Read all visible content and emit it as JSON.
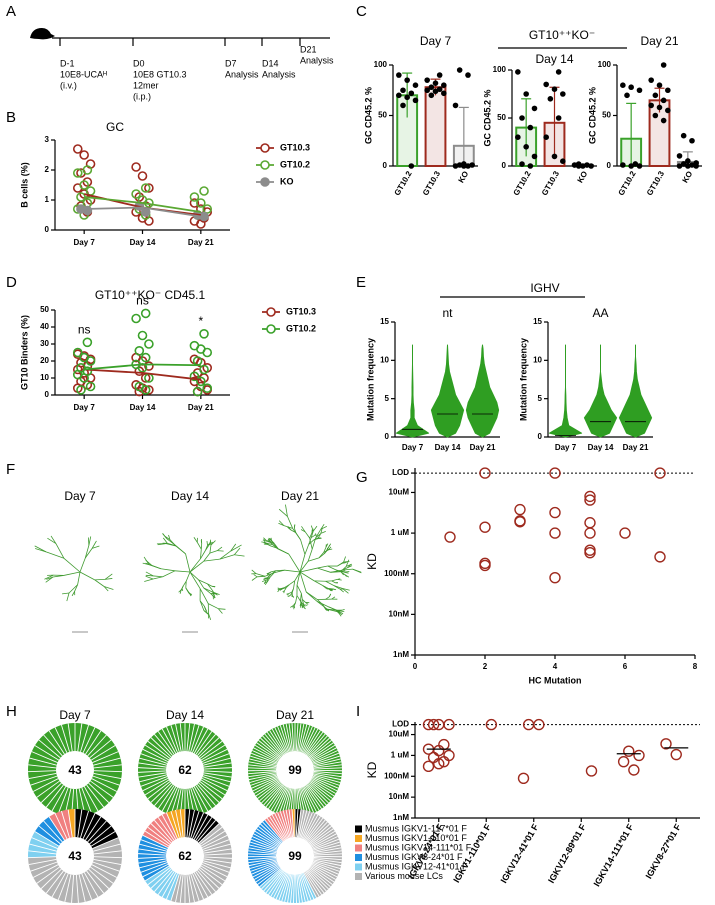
{
  "panels": [
    "A",
    "B",
    "C",
    "D",
    "E",
    "F",
    "G",
    "H",
    "I"
  ],
  "chart_data": [
    {
      "type": "timeline",
      "events": [
        {
          "day": "D-1",
          "lines": [
            "10E8-UCAᴴ",
            "(i.v.)"
          ]
        },
        {
          "day": "D0",
          "lines": [
            "10E8 GT10.3",
            "12mer",
            "(i.p.)"
          ]
        },
        {
          "day": "D7",
          "lines": [
            "Analysis"
          ]
        },
        {
          "day": "D14",
          "lines": [
            "Analysis"
          ]
        },
        {
          "day": "D21",
          "lines": [
            "Analysis"
          ]
        }
      ]
    },
    {
      "type": "line",
      "title": "GC",
      "ylabel": "B cells (%)",
      "categories": [
        "Day 7",
        "Day 14",
        "Day 21"
      ],
      "ylim": [
        0,
        3
      ],
      "yticks": [
        0,
        1,
        2,
        3
      ],
      "legend": "right",
      "series": [
        {
          "name": "GT10.3",
          "color": "#9e2a1e",
          "values": [
            1.2,
            0.75,
            0.5
          ],
          "points": [
            [
              2.7,
              2.5,
              2.2,
              1.9,
              1.6,
              1.4,
              1.2,
              1.0,
              0.8,
              0.6
            ],
            [
              2.1,
              1.8,
              1.4,
              1.1,
              0.8,
              0.6,
              0.4,
              0.3
            ],
            [
              0.9,
              0.7,
              0.6,
              0.5,
              0.4,
              0.3,
              0.2
            ]
          ]
        },
        {
          "name": "GT10.2",
          "color": "#5aa832",
          "values": [
            1.1,
            0.9,
            0.6
          ],
          "points": [
            [
              2.0,
              1.9,
              1.5,
              1.3,
              1.1,
              0.9,
              0.7,
              0.5
            ],
            [
              1.4,
              1.2,
              1.0,
              0.9,
              0.7,
              0.5
            ],
            [
              1.3,
              1.1,
              0.9,
              0.7,
              0.5
            ]
          ]
        },
        {
          "name": "KO",
          "color": "#8c8c8c",
          "filled": true,
          "values": [
            0.7,
            0.75,
            0.45
          ],
          "points": [
            [
              0.7,
              0.65
            ],
            [
              0.8,
              0.6
            ],
            [
              0.5,
              0.45
            ]
          ]
        }
      ]
    },
    {
      "type": "bar",
      "title": "GT10⁺⁺KO⁻",
      "ylabel": "GC CD45.2 %",
      "categories": [
        "GT10.2",
        "GT10.3",
        "KO"
      ],
      "colors": [
        "#3aa12a",
        "#9e2a1e",
        "#8c8c8c"
      ],
      "ylim": [
        0,
        100
      ],
      "yticks": [
        0,
        50,
        100
      ],
      "panels": [
        {
          "title": "Day 7",
          "values": [
            70,
            78,
            20
          ],
          "errors": [
            22,
            8,
            38
          ],
          "points": [
            [
              90,
              85,
              80,
              75,
              72,
              70,
              68,
              65,
              60,
              0
            ],
            [
              90,
              85,
              82,
              80,
              78,
              76,
              75,
              74,
              72,
              70
            ],
            [
              95,
              90,
              60,
              2,
              1,
              1,
              0,
              0,
              0
            ]
          ]
        },
        {
          "title": "Day 14",
          "values": [
            40,
            45,
            1
          ],
          "errors": [
            30,
            37,
            1
          ],
          "points": [
            [
              98,
              75,
              60,
              50,
              40,
              30,
              20,
              10,
              2,
              0
            ],
            [
              98,
              85,
              80,
              75,
              70,
              50,
              30,
              10,
              5
            ],
            [
              2,
              1,
              1,
              0,
              0,
              0
            ]
          ]
        },
        {
          "title": "Day 21",
          "values": [
            27,
            65,
            4
          ],
          "errors": [
            35,
            12,
            10
          ],
          "points": [
            [
              80,
              78,
              75,
              70,
              2,
              1,
              0,
              0
            ],
            [
              100,
              85,
              80,
              75,
              70,
              65,
              60,
              58,
              55,
              50,
              45
            ],
            [
              30,
              25,
              10,
              5,
              3,
              2,
              1,
              0,
              0,
              0
            ]
          ]
        }
      ]
    },
    {
      "type": "line",
      "title": "GT10⁺⁺KO⁻ CD45.1",
      "ylabel": "GT10 Binders (%)",
      "categories": [
        "Day 7",
        "Day 14",
        "Day 21"
      ],
      "ylim": [
        0,
        50
      ],
      "yticks": [
        0,
        10,
        20,
        30,
        40,
        50
      ],
      "legend": "right",
      "annotations": [
        "ns",
        "ns",
        "*"
      ],
      "series": [
        {
          "name": "GT10.3",
          "color": "#9e2a1e",
          "values": [
            15,
            13,
            9
          ],
          "points": [
            [
              24,
              23,
              21,
              19,
              17,
              15,
              13,
              10,
              8,
              6,
              4
            ],
            [
              22,
              20,
              17,
              14,
              10,
              6,
              4,
              3,
              2
            ],
            [
              21,
              19,
              16,
              13,
              10,
              8,
              5,
              3,
              2
            ]
          ]
        },
        {
          "name": "GT10.2",
          "color": "#3aa12a",
          "values": [
            15,
            18,
            17.5
          ],
          "points": [
            [
              31,
              25,
              22,
              20,
              16,
              14,
              12,
              10,
              5,
              3
            ],
            [
              48,
              45,
              35,
              30,
              26,
              22,
              18,
              16,
              10,
              5,
              3
            ],
            [
              36,
              29,
              27,
              25,
              20,
              15,
              11,
              8,
              4,
              2
            ]
          ]
        }
      ]
    },
    {
      "type": "violin",
      "title": "IGHV",
      "ylabel": "Mutation frequency",
      "categories": [
        "Day 7",
        "Day 14",
        "Day 21"
      ],
      "color": "#2f9e22",
      "ylim": [
        0,
        15
      ],
      "yticks": [
        0,
        5,
        10,
        15
      ],
      "bins": [
        0,
        1,
        2,
        3,
        4,
        5,
        6,
        7,
        8,
        9,
        10,
        11,
        12
      ],
      "panels": [
        {
          "title": "nt",
          "medians": [
            1,
            3,
            3
          ],
          "densities": [
            [
              10,
              3,
              1,
              1,
              0.5,
              0.3,
              0.3,
              0.2,
              0.1,
              0,
              0,
              0
            ],
            [
              4,
              6,
              7,
              8,
              6,
              4,
              3,
              2,
              1,
              0.5,
              0.3,
              0.1
            ],
            [
              4,
              6,
              8,
              9,
              8,
              6,
              4,
              3,
              2,
              1,
              0.5,
              0.3
            ]
          ]
        },
        {
          "title": "AA",
          "medians": [
            0.2,
            2,
            2
          ],
          "densities": [
            [
              10,
              2,
              1,
              0.5,
              0.3,
              0.2,
              0,
              0,
              0,
              0,
              0,
              0
            ],
            [
              5,
              7,
              9,
              6,
              4,
              2,
              1,
              0.5,
              0,
              0,
              0,
              0
            ],
            [
              5,
              7,
              9,
              7,
              5,
              3,
              2,
              1,
              0.5,
              0.3,
              0,
              0
            ]
          ]
        }
      ]
    },
    {
      "type": "tree",
      "titles": [
        "Day 7",
        "Day 14",
        "Day 21"
      ]
    },
    {
      "type": "scatter",
      "xlabel": "HC Mutation",
      "ylabel": "KD",
      "color": "#9e2a1e",
      "xlim": [
        0,
        8
      ],
      "xticks": [
        0,
        2,
        4,
        6,
        8
      ],
      "ylim": [
        1,
        40000
      ],
      "yscale": "log",
      "hline": 30000,
      "yticks": [
        {
          "value": 1,
          "label": "1nM"
        },
        {
          "value": 10,
          "label": "10nM"
        },
        {
          "value": 100,
          "label": "100nM"
        },
        {
          "value": 1000,
          "label": "1 uM"
        },
        {
          "value": 10000,
          "label": "10uM"
        },
        {
          "value": 30000,
          "label": "LOD"
        }
      ],
      "x": [
        1,
        2,
        2,
        2,
        2,
        3,
        3,
        3,
        4,
        4,
        4,
        4,
        5,
        5,
        5,
        5,
        5,
        5,
        6,
        7,
        7
      ],
      "y": [
        800,
        30000,
        1400,
        180,
        160,
        3800,
        2000,
        1900,
        30000,
        3200,
        1000,
        80,
        8000,
        6500,
        1800,
        1000,
        380,
        330,
        1000,
        30000,
        260
      ]
    },
    {
      "type": "donut",
      "titles": [
        "Day 7",
        "Day 14",
        "Day 21"
      ],
      "totals": [
        43,
        62,
        99
      ],
      "top_color": "#3aa12a",
      "legend": "right",
      "series": [
        {
          "name": "Musmus IGKV1-117*01 F",
          "color": "#000000",
          "values": [
            8,
            8,
            2
          ]
        },
        {
          "name": "Musmus IGKV1-110*01 F",
          "color": "#f5a623",
          "values": [
            1,
            4,
            1
          ]
        },
        {
          "name": "Musmus IGKV14-111*01 F",
          "color": "#f08080",
          "values": [
            3,
            7,
            10
          ]
        },
        {
          "name": "Musmus IGKV8-24*01 F",
          "color": "#1f8fe0",
          "values": [
            3,
            10,
            25
          ]
        },
        {
          "name": "Musmus IGKV12-41*01 F",
          "color": "#7fd0f0",
          "values": [
            4,
            7,
            21
          ]
        },
        {
          "name": "Various mouse LCs",
          "color": "#b3b3b3",
          "values": [
            24,
            26,
            40
          ]
        }
      ]
    },
    {
      "type": "strip",
      "ylabel": "KD",
      "color": "#9e2a1e",
      "ylim": [
        1,
        40000
      ],
      "yscale": "log",
      "hline": 30000,
      "yticks": [
        {
          "value": 1,
          "label": "1nM"
        },
        {
          "value": 10,
          "label": "10nM"
        },
        {
          "value": 100,
          "label": "100nM"
        },
        {
          "value": 1000,
          "label": "1 uM"
        },
        {
          "value": 10000,
          "label": "10uM"
        },
        {
          "value": 30000,
          "label": "LOD"
        }
      ],
      "categories": [
        "IGKV8-24*01 F",
        "IGKV1-110*01 F",
        "IGKV12-41*01 F",
        "IGKV12-89*01 F",
        "IGKV14-111*01 F",
        "IGKV8-27*01 F"
      ],
      "values": [
        [
          30000,
          30000,
          30000,
          30000,
          3300,
          2000,
          1700,
          1000,
          800,
          500,
          300,
          400
        ],
        [
          30000
        ],
        [
          30000,
          30000,
          80
        ],
        [
          180
        ],
        [
          1600,
          1000,
          500,
          200
        ],
        [
          3600,
          1100
        ]
      ],
      "medians": [
        2000,
        null,
        null,
        null,
        1200,
        2300
      ]
    }
  ]
}
